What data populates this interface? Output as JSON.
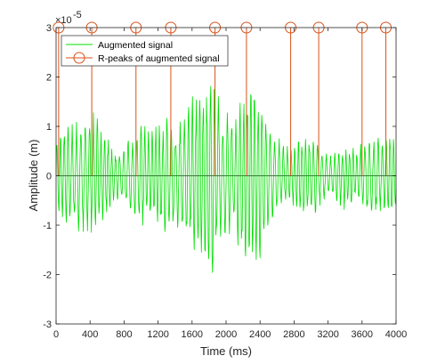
{
  "chart_data": {
    "type": "line",
    "xlabel": "Time (ms)",
    "ylabel": "Amplitude (m)",
    "exponent": {
      "base": "×10",
      "power": "-5"
    },
    "xlim": [
      0,
      4000
    ],
    "ylim": [
      -3,
      3
    ],
    "xticks": [
      0,
      400,
      800,
      1200,
      1600,
      2000,
      2400,
      2800,
      3200,
      3600,
      4000
    ],
    "yticks": [
      -3,
      -2,
      -1,
      0,
      1,
      2,
      3
    ],
    "grid": false,
    "legend_position": "top-left",
    "series": [
      {
        "name": "Augmented signal",
        "kind": "line",
        "color": "#00e000",
        "envelope_x": [
          0,
          100,
          200,
          300,
          400,
          500,
          600,
          700,
          800,
          900,
          1000,
          1100,
          1200,
          1300,
          1400,
          1500,
          1600,
          1700,
          1800,
          1850,
          1900,
          2000,
          2100,
          2200,
          2300,
          2400,
          2500,
          2600,
          2700,
          2800,
          2900,
          3000,
          3100,
          3200,
          3300,
          3400,
          3500,
          3600,
          3700,
          3800,
          3900,
          4000
        ],
        "envelope_amplitude": [
          0.9,
          1.0,
          1.1,
          1.2,
          1.35,
          1.2,
          0.9,
          0.5,
          0.6,
          0.9,
          1.1,
          1.0,
          1.2,
          1.3,
          1.0,
          1.3,
          1.7,
          1.9,
          2.0,
          2.3,
          1.7,
          1.3,
          1.3,
          1.8,
          1.9,
          1.8,
          1.1,
          0.9,
          0.6,
          0.7,
          0.9,
          0.9,
          0.7,
          0.4,
          0.6,
          0.7,
          0.6,
          0.7,
          0.8,
          0.8,
          1.0,
          1.0
        ]
      },
      {
        "name": "R-peaks of augmented signal",
        "kind": "stem",
        "color": "#d95319",
        "x": [
          30,
          420,
          940,
          1350,
          1870,
          2240,
          2760,
          3090,
          3600,
          3880
        ],
        "y": [
          3,
          3,
          3,
          3,
          3,
          3,
          3,
          3,
          3,
          3
        ]
      }
    ]
  }
}
